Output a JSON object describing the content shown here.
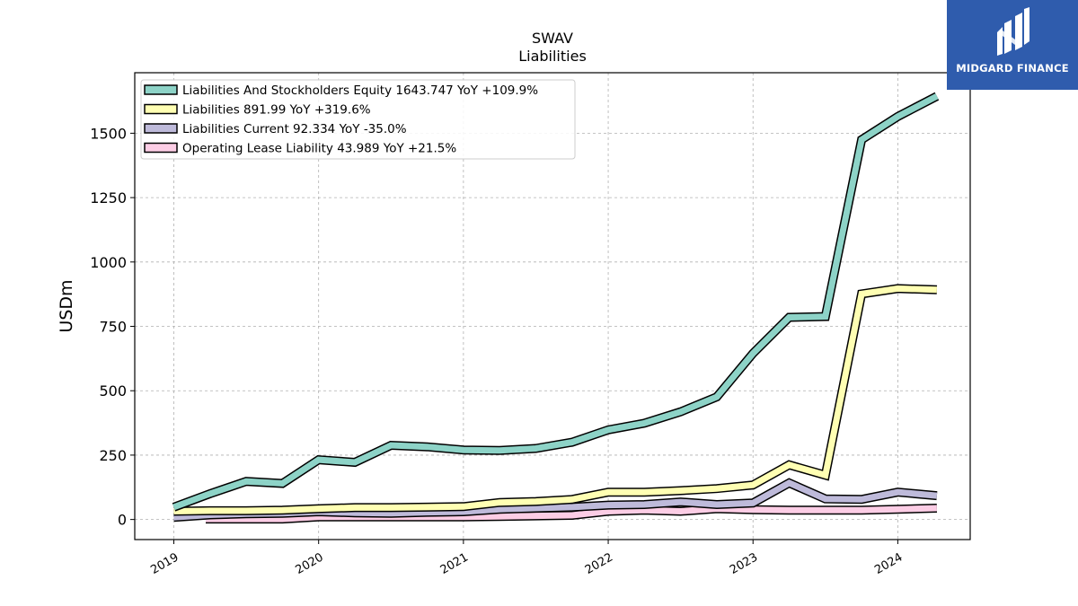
{
  "brand": {
    "name": "MIDGARD FINANCE"
  },
  "chart_data": {
    "type": "line",
    "title": "SWAV",
    "subtitle": "Liabilities",
    "ylabel": "USDm",
    "xlabel": "",
    "xlim": [
      2018.73,
      2024.5
    ],
    "ylim": [
      -78,
      1735
    ],
    "yticks": [
      0,
      250,
      500,
      750,
      1000,
      1250,
      1500
    ],
    "xticks": [
      "2019",
      "2020",
      "2021",
      "2022",
      "2023",
      "2024"
    ],
    "grid": true,
    "legend_position": "top-left",
    "series": [
      {
        "name": "Liabilities And Stockholders Equity  1643.747 YoY +109.9%",
        "color": "#8dd3c7",
        "x": [
          2019.0,
          2019.25,
          2019.5,
          2019.75,
          2020.0,
          2020.25,
          2020.5,
          2020.75,
          2021.0,
          2021.25,
          2021.5,
          2021.75,
          2022.0,
          2022.25,
          2022.5,
          2022.75,
          2023.0,
          2023.25,
          2023.5,
          2023.75,
          2024.0,
          2024.27
        ],
        "y": [
          48,
          100,
          148,
          140,
          232,
          222,
          288,
          282,
          270,
          268,
          276,
          300,
          348,
          374,
          418,
          476,
          645,
          785,
          788,
          1475,
          1565,
          1643.747
        ]
      },
      {
        "name": "Liabilities  891.99 YoY +319.6%",
        "color": "#ffffb3",
        "x": [
          2019.0,
          2019.25,
          2019.5,
          2019.75,
          2020.0,
          2020.25,
          2020.5,
          2020.75,
          2021.0,
          2021.25,
          2021.5,
          2021.75,
          2022.0,
          2022.25,
          2022.5,
          2022.75,
          2023.0,
          2023.25,
          2023.5,
          2023.75,
          2024.0,
          2024.27
        ],
        "y": [
          32,
          34,
          34,
          36,
          42,
          46,
          46,
          48,
          50,
          66,
          70,
          78,
          106,
          106,
          112,
          120,
          134,
          212,
          172,
          876,
          897,
          891.99
        ]
      },
      {
        "name": "Liabilities Current  92.334 YoY -35.0%",
        "color": "#bebada",
        "x": [
          2019.0,
          2019.25,
          2019.5,
          2019.75,
          2020.0,
          2020.25,
          2020.5,
          2020.75,
          2021.0,
          2021.25,
          2021.5,
          2021.75,
          2022.0,
          2022.25,
          2022.5,
          2022.75,
          2023.0,
          2023.25,
          2023.5,
          2023.75,
          2024.0,
          2024.27
        ],
        "y": [
          8,
          18,
          22,
          24,
          30,
          26,
          24,
          28,
          30,
          40,
          44,
          48,
          56,
          58,
          68,
          58,
          64,
          142,
          80,
          78,
          106,
          92.334
        ]
      },
      {
        "name": "Operating Lease Liability  43.989 YoY +21.5%",
        "color": "#fccde5",
        "x": [
          2019.22,
          2019.5,
          2019.75,
          2020.0,
          2020.25,
          2020.5,
          2020.75,
          2021.0,
          2021.25,
          2021.5,
          2021.75,
          2022.0,
          2022.25,
          2022.5,
          2022.75,
          2023.0,
          2023.25,
          2023.5,
          2023.75,
          2024.0,
          2024.27
        ],
        "y": [
          2,
          2,
          2,
          10,
          10,
          10,
          10,
          10,
          12,
          14,
          16,
          32,
          36,
          32,
          42,
          38,
          36,
          36,
          36,
          40,
          43.989
        ]
      }
    ]
  }
}
